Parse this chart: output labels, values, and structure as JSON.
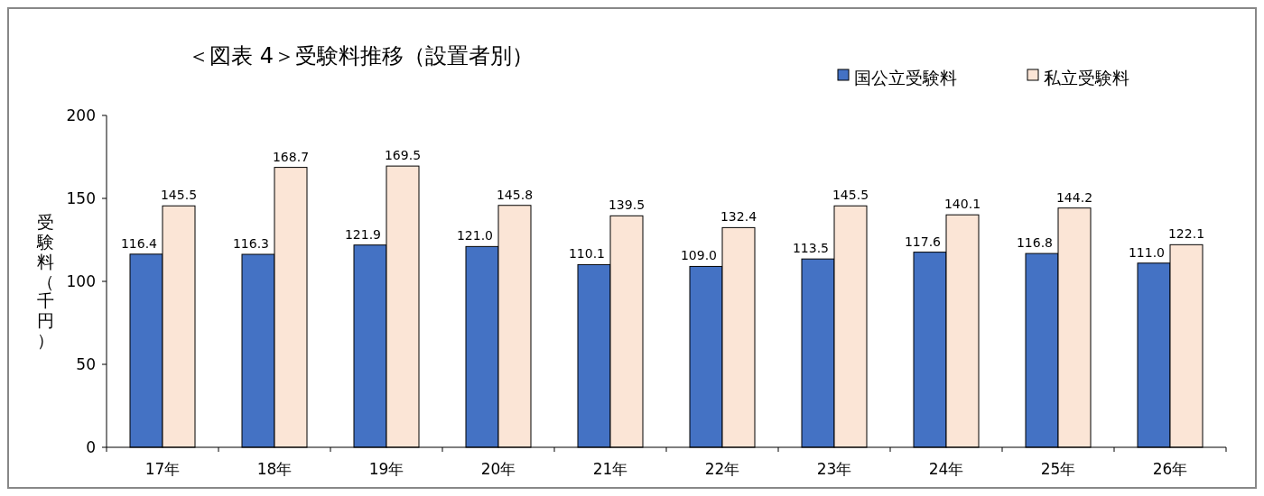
{
  "chart_data": {
    "type": "bar",
    "title": "＜図表 4＞受験料推移（設置者別）",
    "ylabel": "受験料（千円）",
    "categories": [
      "17年",
      "18年",
      "19年",
      "20年",
      "21年",
      "22年",
      "23年",
      "24年",
      "25年",
      "26年"
    ],
    "series": [
      {
        "name": "国公立受験料",
        "color": "#4472c4",
        "values": [
          116.4,
          116.3,
          121.9,
          121.0,
          110.1,
          109.0,
          113.5,
          117.6,
          116.8,
          111.0
        ],
        "value_labels": [
          "116.4",
          "116.3",
          "121.9",
          "121.0",
          "110.1",
          "109.0",
          "113.5",
          "117.6",
          "116.8",
          "111.0"
        ]
      },
      {
        "name": "私立受験料",
        "color": "#fbe5d6",
        "values": [
          145.5,
          168.7,
          169.5,
          145.8,
          139.5,
          132.4,
          145.5,
          140.1,
          144.2,
          122.1
        ],
        "value_labels": [
          "145.5",
          "168.7",
          "169.5",
          "145.8",
          "139.5",
          "132.4",
          "145.5",
          "140.1",
          "144.2",
          "122.1"
        ]
      }
    ],
    "ylim": [
      0,
      200
    ],
    "yticks": [
      0,
      50,
      100,
      150,
      200
    ],
    "legend": "top right",
    "grid": false
  }
}
